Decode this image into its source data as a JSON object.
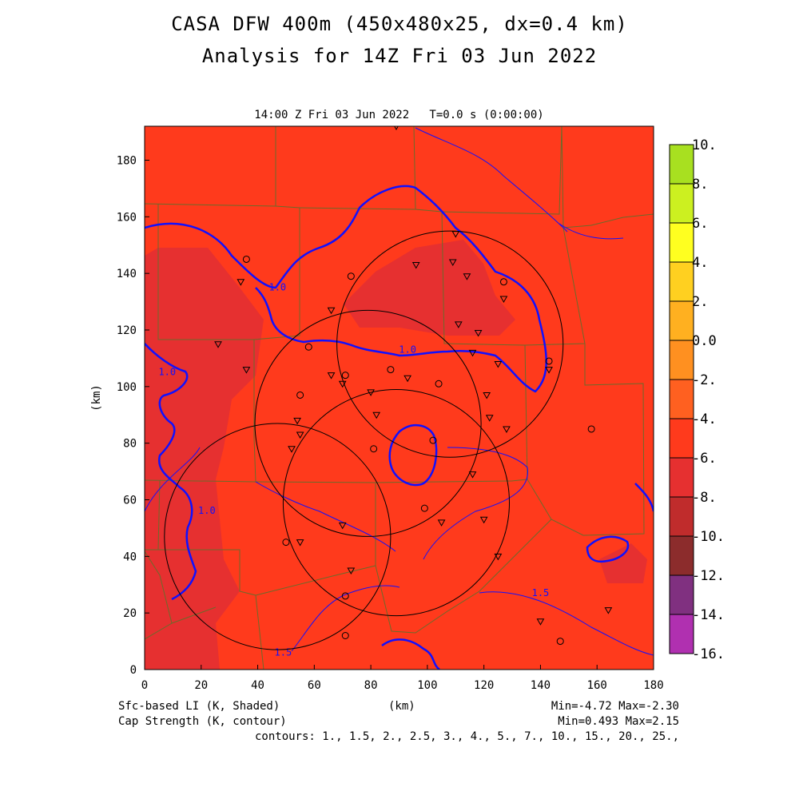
{
  "header": {
    "title_line1": "CASA DFW 400m (450x480x25, dx=0.4 km)",
    "title_line2": "Analysis for 14Z Fri 03 Jun 2022",
    "time_label": "14:00 Z Fri 03 Jun 2022   T=0.0 s (0:00:00)"
  },
  "footer": {
    "shaded_label": "Sfc-based LI (K, Shaded)",
    "contour_label": "Cap Strength (K, contour)",
    "x_unit": "(km)",
    "shaded_minmax": "Min=-4.72 Max=-2.30",
    "contour_minmax": "Min=0.493 Max=2.15",
    "contours_line": "contours: 1., 1.5, 2., 2.5, 3., 4., 5., 7., 10., 15., 20., 25.,"
  },
  "chart_data": {
    "type": "heatmap",
    "title": "CASA DFW 400m (450x480x25, dx=0.4 km)",
    "subtitle": "Analysis for 14Z Fri 03 Jun 2022",
    "xlabel": "(km)",
    "ylabel": "(km)",
    "xlim": [
      0,
      180
    ],
    "ylim": [
      0,
      192
    ],
    "x_ticks": [
      0,
      20,
      40,
      60,
      80,
      100,
      120,
      140,
      160,
      180
    ],
    "y_ticks": [
      0,
      20,
      40,
      60,
      80,
      100,
      120,
      140,
      160,
      180
    ],
    "x_tick_labels": [
      "0",
      "20",
      "40",
      "60",
      "80",
      "100",
      "120",
      "140",
      "160",
      "180"
    ],
    "y_tick_labels": [
      "0",
      "20",
      "40",
      "60",
      "80",
      "100",
      "120",
      "140",
      "160",
      "180"
    ],
    "colorbar": {
      "labels": [
        "10.",
        "8.",
        "6.",
        "4.",
        "2.",
        "0.0",
        "-2.",
        "-4.",
        "-6.",
        "-8.",
        "-10.",
        "-12.",
        "-14.",
        "-16."
      ],
      "levels": [
        10,
        8,
        6,
        4,
        2,
        0,
        -2,
        -4,
        -6,
        -8,
        -10,
        -12,
        -14,
        -16
      ],
      "colors": [
        "#a8e020",
        "#ccf020",
        "#ffff20",
        "#ffd020",
        "#ffb020",
        "#ff9020",
        "#ff6020",
        "#ff3a1c",
        "#e63030",
        "#c02c2c",
        "#8c2c2c",
        "#803080",
        "#b030b0",
        "#dd44dd"
      ]
    },
    "field_colors": {
      "background": "#ff3a1c",
      "darker": "#e63030"
    },
    "shaded_field": {
      "name": "Sfc-based LI (K, Shaded)",
      "min": -4.72,
      "max": -2.3
    },
    "contour_field": {
      "name": "Cap Strength (K, contour)",
      "min": 0.493,
      "max": 2.15,
      "levels": [
        1,
        1.5,
        2,
        2.5,
        3,
        4,
        5,
        7,
        10,
        15,
        20,
        25
      ]
    },
    "contour_labels": [
      {
        "text": "1.0",
        "x": 8,
        "y": 104
      },
      {
        "text": "1.0",
        "x": 47,
        "y": 134
      },
      {
        "text": "1.0",
        "x": 93,
        "y": 112
      },
      {
        "text": "1.0",
        "x": 22,
        "y": 55
      },
      {
        "text": "1.5",
        "x": 140,
        "y": 26
      },
      {
        "text": "1.5",
        "x": 49,
        "y": 5
      }
    ],
    "radar_rings": [
      {
        "cx": 79,
        "cy": 87,
        "r": 40
      },
      {
        "cx": 108,
        "cy": 115,
        "r": 40
      },
      {
        "cx": 47,
        "cy": 47,
        "r": 40
      },
      {
        "cx": 89,
        "cy": 59,
        "r": 40
      }
    ],
    "triangle_stations": [
      [
        34,
        137
      ],
      [
        26,
        115
      ],
      [
        36,
        106
      ],
      [
        66,
        127
      ],
      [
        66,
        104
      ],
      [
        70,
        101
      ],
      [
        54,
        88
      ],
      [
        55,
        83
      ],
      [
        52,
        78
      ],
      [
        80,
        98
      ],
      [
        82,
        90
      ],
      [
        93,
        103
      ],
      [
        96,
        143
      ],
      [
        109,
        144
      ],
      [
        110,
        154
      ],
      [
        114,
        139
      ],
      [
        111,
        122
      ],
      [
        118,
        119
      ],
      [
        116,
        112
      ],
      [
        125,
        108
      ],
      [
        127,
        131
      ],
      [
        121,
        97
      ],
      [
        122,
        89
      ],
      [
        128,
        85
      ],
      [
        143,
        106
      ],
      [
        116,
        69
      ],
      [
        70,
        51
      ],
      [
        55,
        45
      ],
      [
        73,
        35
      ],
      [
        105,
        52
      ],
      [
        120,
        53
      ],
      [
        125,
        40
      ],
      [
        140,
        17
      ],
      [
        164,
        21
      ],
      [
        89,
        192
      ]
    ],
    "circle_stations": [
      [
        36,
        145
      ],
      [
        73,
        139
      ],
      [
        58,
        114
      ],
      [
        55,
        97
      ],
      [
        87,
        106
      ],
      [
        104,
        101
      ],
      [
        102,
        81
      ],
      [
        81,
        78
      ],
      [
        99,
        57
      ],
      [
        50,
        45
      ],
      [
        143,
        109
      ],
      [
        158,
        85
      ],
      [
        147,
        10
      ],
      [
        71,
        104
      ],
      [
        127,
        137
      ],
      [
        71,
        26
      ],
      [
        71,
        12
      ]
    ]
  }
}
